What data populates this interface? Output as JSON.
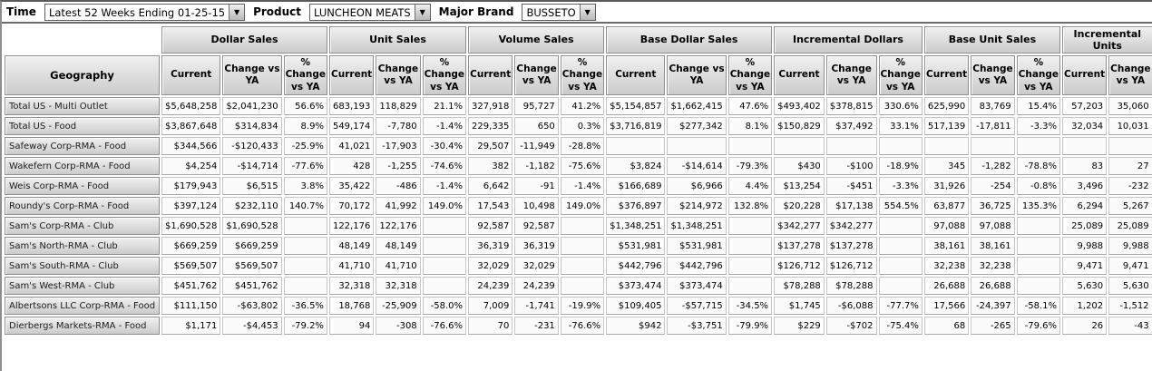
{
  "toolbar": {
    "time_label": "Time",
    "time_value": "Latest 52 Weeks Ending 01-25-15",
    "product_label": "Product",
    "product_value": "LUNCHEON MEATS",
    "brand_label": "Major Brand",
    "brand_value": "BUSSETO",
    "dropdown_arrow": "▼"
  },
  "colors": {
    "header_gray": "#d9d9d9",
    "border_dark": "#6b6b6b",
    "cell_bg": "#fbfbfb"
  },
  "table": {
    "geography_header": "Geography",
    "subheader_labels": [
      "Current",
      "Change vs YA",
      "% Change vs YA"
    ],
    "groups": [
      {
        "label": "Dollar Sales",
        "cols": 3
      },
      {
        "label": "Unit Sales",
        "cols": 3
      },
      {
        "label": "Volume Sales",
        "cols": 3
      },
      {
        "label": "Base Dollar Sales",
        "cols": 3
      },
      {
        "label": "Incremental Dollars",
        "cols": 3
      },
      {
        "label": "Base Unit Sales",
        "cols": 3
      },
      {
        "label": "Incremental Units",
        "cols": 2
      }
    ],
    "rows": [
      {
        "geo": "Total US - Multi Outlet",
        "cells": [
          "$5,648,258",
          "$2,041,230",
          "56.6%",
          "683,193",
          "118,829",
          "21.1%",
          "327,918",
          "95,727",
          "41.2%",
          "$5,154,857",
          "$1,662,415",
          "47.6%",
          "$493,402",
          "$378,815",
          "330.6%",
          "625,990",
          "83,769",
          "15.4%",
          "57,203",
          "35,060"
        ]
      },
      {
        "geo": "Total US - Food",
        "cells": [
          "$3,867,648",
          "$314,834",
          "8.9%",
          "549,174",
          "-7,780",
          "-1.4%",
          "229,335",
          "650",
          "0.3%",
          "$3,716,819",
          "$277,342",
          "8.1%",
          "$150,829",
          "$37,492",
          "33.1%",
          "517,139",
          "-17,811",
          "-3.3%",
          "32,034",
          "10,031"
        ]
      },
      {
        "geo": "Safeway Corp-RMA - Food",
        "cells": [
          "$344,566",
          "-$120,433",
          "-25.9%",
          "41,021",
          "-17,903",
          "-30.4%",
          "29,507",
          "-11,949",
          "-28.8%",
          "",
          "",
          "",
          "",
          "",
          "",
          "",
          "",
          "",
          "",
          ""
        ]
      },
      {
        "geo": "Wakefern Corp-RMA - Food",
        "cells": [
          "$4,254",
          "-$14,714",
          "-77.6%",
          "428",
          "-1,255",
          "-74.6%",
          "382",
          "-1,182",
          "-75.6%",
          "$3,824",
          "-$14,614",
          "-79.3%",
          "$430",
          "-$100",
          "-18.9%",
          "345",
          "-1,282",
          "-78.8%",
          "83",
          "27"
        ]
      },
      {
        "geo": "Weis Corp-RMA - Food",
        "cells": [
          "$179,943",
          "$6,515",
          "3.8%",
          "35,422",
          "-486",
          "-1.4%",
          "6,642",
          "-91",
          "-1.4%",
          "$166,689",
          "$6,966",
          "4.4%",
          "$13,254",
          "-$451",
          "-3.3%",
          "31,926",
          "-254",
          "-0.8%",
          "3,496",
          "-232"
        ]
      },
      {
        "geo": "Roundy's Corp-RMA - Food",
        "cells": [
          "$397,124",
          "$232,110",
          "140.7%",
          "70,172",
          "41,992",
          "149.0%",
          "17,543",
          "10,498",
          "149.0%",
          "$376,897",
          "$214,972",
          "132.8%",
          "$20,228",
          "$17,138",
          "554.5%",
          "63,877",
          "36,725",
          "135.3%",
          "6,294",
          "5,267"
        ]
      },
      {
        "geo": "Sam's Corp-RMA - Club",
        "cells": [
          "$1,690,528",
          "$1,690,528",
          "",
          "122,176",
          "122,176",
          "",
          "92,587",
          "92,587",
          "",
          "$1,348,251",
          "$1,348,251",
          "",
          "$342,277",
          "$342,277",
          "",
          "97,088",
          "97,088",
          "",
          "25,089",
          "25,089"
        ]
      },
      {
        "geo": "Sam's North-RMA - Club",
        "cells": [
          "$669,259",
          "$669,259",
          "",
          "48,149",
          "48,149",
          "",
          "36,319",
          "36,319",
          "",
          "$531,981",
          "$531,981",
          "",
          "$137,278",
          "$137,278",
          "",
          "38,161",
          "38,161",
          "",
          "9,988",
          "9,988"
        ]
      },
      {
        "geo": "Sam's South-RMA - Club",
        "cells": [
          "$569,507",
          "$569,507",
          "",
          "41,710",
          "41,710",
          "",
          "32,029",
          "32,029",
          "",
          "$442,796",
          "$442,796",
          "",
          "$126,712",
          "$126,712",
          "",
          "32,238",
          "32,238",
          "",
          "9,471",
          "9,471"
        ]
      },
      {
        "geo": "Sam's West-RMA - Club",
        "cells": [
          "$451,762",
          "$451,762",
          "",
          "32,318",
          "32,318",
          "",
          "24,239",
          "24,239",
          "",
          "$373,474",
          "$373,474",
          "",
          "$78,288",
          "$78,288",
          "",
          "26,688",
          "26,688",
          "",
          "5,630",
          "5,630"
        ]
      },
      {
        "geo": "Albertsons LLC Corp-RMA - Food",
        "cells": [
          "$111,150",
          "-$63,802",
          "-36.5%",
          "18,768",
          "-25,909",
          "-58.0%",
          "7,009",
          "-1,741",
          "-19.9%",
          "$109,405",
          "-$57,715",
          "-34.5%",
          "$1,745",
          "-$6,088",
          "-77.7%",
          "17,566",
          "-24,397",
          "-58.1%",
          "1,202",
          "-1,512"
        ]
      },
      {
        "geo": "Dierbergs Markets-RMA - Food",
        "cells": [
          "$1,171",
          "-$4,453",
          "-79.2%",
          "94",
          "-308",
          "-76.6%",
          "70",
          "-231",
          "-76.6%",
          "$942",
          "-$3,751",
          "-79.9%",
          "$229",
          "-$702",
          "-75.4%",
          "68",
          "-265",
          "-79.6%",
          "26",
          "-43"
        ]
      }
    ]
  }
}
